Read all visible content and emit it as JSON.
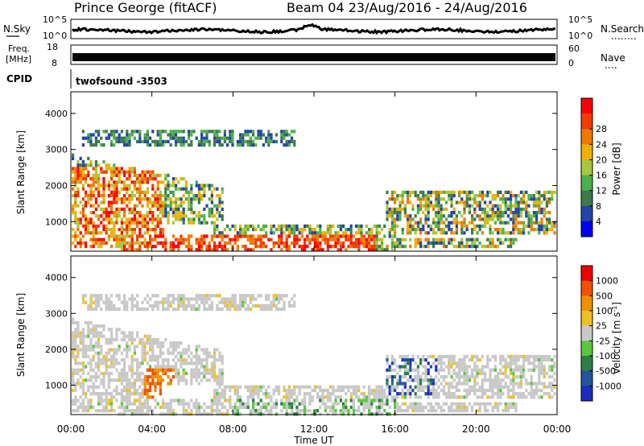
{
  "header": {
    "station": "Prince George (fitACF)",
    "beam_date": "Beam 04 23/Aug/2016 - 24/Aug/2016"
  },
  "strip_panels": {
    "nsky": {
      "label": "N.Sky",
      "ytick_top": "10^5",
      "ytick_bottom": "10^0"
    },
    "nsearch": {
      "label": "N.Search",
      "ytick_top": "10^5",
      "ytick_bottom": "10^0"
    },
    "freq": {
      "label_line1": "Freq.",
      "label_line2": "[MHz]",
      "ytick_top": "18",
      "ytick_bottom": "8"
    },
    "nave": {
      "label": "Nave",
      "ytick_top": "60",
      "ytick_bottom": "0"
    },
    "cpid": {
      "label": "CPID",
      "program": "twofsound -3503"
    }
  },
  "chart_data": [
    {
      "type": "heatmap",
      "name": "power",
      "ylabel": "Slant Range [km]",
      "yticks": [
        1000,
        2000,
        3000,
        4000
      ],
      "ylim": [
        180,
        4600
      ],
      "colorbar": {
        "label": "Power [dB]",
        "ticks": [
          "4",
          "8",
          "12",
          "16",
          "20",
          "24",
          "28"
        ],
        "colors": [
          "#0000ff",
          "#2244a8",
          "#3c7a4a",
          "#4cb04c",
          "#a6c83c",
          "#f0b000",
          "#f07800",
          "#f03c00",
          "#ff0000"
        ]
      }
    },
    {
      "type": "heatmap",
      "name": "velocity",
      "ylabel": "Slant Range [km]",
      "yticks": [
        1000,
        2000,
        3000,
        4000
      ],
      "ylim": [
        180,
        4600
      ],
      "colorbar": {
        "label": "Velocity [m s^-1]",
        "ticks": [
          "1000",
          "500",
          "100",
          "25",
          "-25",
          "-100",
          "-500",
          "-1000"
        ],
        "colors": [
          "#1c2cc0",
          "#2454a0",
          "#2c8046",
          "#58c83c",
          "#c8c8c8",
          "#f0c020",
          "#f09000",
          "#f05000",
          "#f00000"
        ]
      }
    }
  ],
  "time_axis": {
    "label": "Time UT",
    "ticks": [
      "00:00",
      "04:00",
      "08:00",
      "12:00",
      "16:00",
      "20:00",
      "00:00"
    ]
  }
}
